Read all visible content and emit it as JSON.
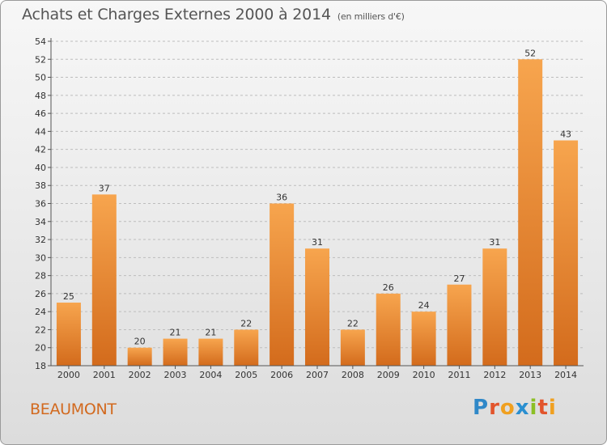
{
  "header": {
    "title": "Achats et Charges Externes 2000 à 2014",
    "unit": "(en milliers d'€)"
  },
  "commune": "BEAUMONT",
  "logo": "Proxiti",
  "colors": {
    "bar_light": "#f6a34c",
    "bar_dark": "#d67020",
    "commune_text": "#d2691e"
  },
  "chart_data": {
    "type": "bar",
    "title": "Achats et Charges Externes 2000 à 2014",
    "subtitle": "(en milliers d'€)",
    "categories": [
      "2000",
      "2001",
      "2002",
      "2003",
      "2004",
      "2005",
      "2006",
      "2007",
      "2008",
      "2009",
      "2010",
      "2011",
      "2012",
      "2013",
      "2014"
    ],
    "values": [
      25,
      37,
      20,
      21,
      21,
      22,
      36,
      31,
      22,
      26,
      24,
      27,
      31,
      52,
      43
    ],
    "ylim": [
      18,
      54
    ],
    "yticks": [
      18,
      20,
      22,
      24,
      26,
      28,
      30,
      32,
      34,
      36,
      38,
      40,
      42,
      44,
      46,
      48,
      50,
      52,
      54
    ],
    "grid": "horizontal dashed",
    "legend": "none"
  }
}
